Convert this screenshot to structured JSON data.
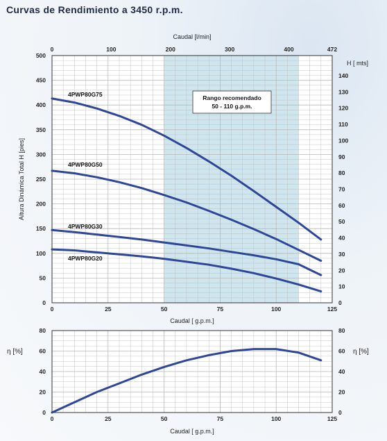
{
  "title": "Curvas de Rendimiento a 3450 r.p.m.",
  "chart_data": [
    {
      "type": "line",
      "top_axis": {
        "label": "Caudal [l/min]",
        "ticks": [
          "0",
          "100",
          "200",
          "300",
          "400",
          "472"
        ],
        "max": 472
      },
      "bottom_axis": {
        "label": "Caudal [ g.p.m.]",
        "ticks": [
          "0",
          "25",
          "50",
          "75",
          "100",
          "125"
        ],
        "xlim": [
          0,
          125
        ]
      },
      "left_axis": {
        "label": "Altura Dinámica Total H [pies]",
        "ticks": [
          "0",
          "50",
          "100",
          "150",
          "200",
          "250",
          "300",
          "350",
          "400",
          "450",
          "500"
        ],
        "ylim": [
          0,
          500
        ]
      },
      "right_axis": {
        "label": "H [ mts]",
        "ticks": [
          "0",
          "10",
          "20",
          "30",
          "40",
          "50",
          "60",
          "70",
          "80",
          "90",
          "100",
          "110",
          "120",
          "130",
          "140"
        ],
        "ylim": [
          0,
          152.4
        ]
      },
      "recommended_range": {
        "x": [
          50,
          110
        ],
        "line1": "Rango recomendado",
        "line2": "50 - 110 g.p.m."
      },
      "grid": true,
      "series": [
        {
          "name": "4PWP80G75",
          "x": [
            0,
            10,
            20,
            30,
            40,
            50,
            60,
            70,
            80,
            90,
            100,
            110,
            120
          ],
          "values": [
            413,
            405,
            393,
            378,
            360,
            338,
            313,
            286,
            257,
            226,
            194,
            162,
            128
          ]
        },
        {
          "name": "4PWP80G50",
          "x": [
            0,
            10,
            20,
            30,
            40,
            50,
            60,
            70,
            80,
            90,
            100,
            110,
            120
          ],
          "values": [
            267,
            262,
            254,
            244,
            232,
            218,
            203,
            186,
            168,
            149,
            129,
            107,
            85
          ]
        },
        {
          "name": "4PWP80G30",
          "x": [
            0,
            10,
            20,
            30,
            40,
            50,
            60,
            70,
            80,
            90,
            100,
            110,
            120
          ],
          "values": [
            147,
            143,
            138,
            133,
            128,
            122,
            116,
            110,
            103,
            96,
            88,
            78,
            56
          ]
        },
        {
          "name": "4PWP80G20",
          "x": [
            0,
            10,
            20,
            30,
            40,
            50,
            60,
            70,
            80,
            90,
            100,
            110,
            120
          ],
          "values": [
            108,
            106,
            102,
            98,
            94,
            89,
            83,
            77,
            69,
            60,
            49,
            37,
            23
          ]
        }
      ],
      "colors": {
        "curve": "#2e4699",
        "range_fill": "#cfe6ef",
        "grid": "#b8b8b8"
      }
    },
    {
      "type": "line",
      "left_axis": {
        "label": "η [%]",
        "ticks": [
          "0",
          "20",
          "40",
          "60",
          "80"
        ],
        "ylim": [
          0,
          80
        ]
      },
      "right_axis": {
        "label": "η [%]",
        "ticks": [
          "0",
          "20",
          "40",
          "60",
          "80"
        ],
        "ylim": [
          0,
          80
        ]
      },
      "bottom_axis": {
        "label": "Caudal [ g.p.m.]",
        "ticks": [
          "0",
          "25",
          "50",
          "75",
          "100",
          "125"
        ],
        "xlim": [
          0,
          125
        ]
      },
      "grid": true,
      "series": [
        {
          "x": [
            0,
            10,
            20,
            30,
            40,
            50,
            60,
            70,
            80,
            90,
            100,
            110,
            120
          ],
          "values": [
            0,
            10,
            20,
            28.5,
            37,
            44.5,
            51,
            56,
            60,
            62,
            62,
            58.5,
            51
          ]
        }
      ]
    }
  ]
}
